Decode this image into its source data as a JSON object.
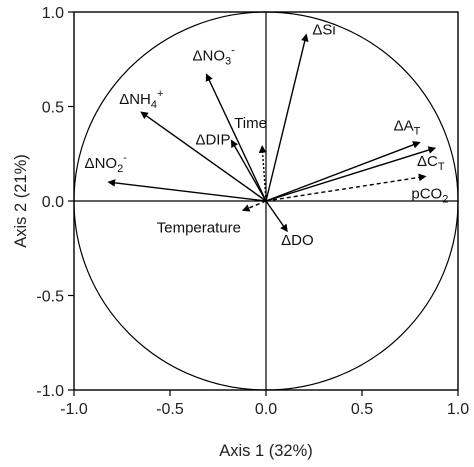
{
  "chart_data": {
    "type": "scatter",
    "subtype": "pca-biplot",
    "title": "",
    "xlabel": "Axis 1 (32%)",
    "ylabel": "Axis 2 (21%)",
    "xlim": [
      -1.0,
      1.0
    ],
    "ylim": [
      -1.0,
      1.0
    ],
    "xticks": [
      "-1.0",
      "-0.5",
      "0.0",
      "0.5",
      "1.0"
    ],
    "yticks": [
      "1.0",
      "0.5",
      "0.0",
      "-0.5",
      "-1.0"
    ],
    "grid": false,
    "correlation_circle": true,
    "vectors": [
      {
        "name": "ΔSi",
        "x": 0.21,
        "y": 0.88,
        "style": "solid",
        "label": {
          "base": "ΔSi",
          "sub": "",
          "sup": ""
        }
      },
      {
        "name": "ΔNO3-",
        "x": -0.31,
        "y": 0.67,
        "style": "solid",
        "label": {
          "base": "ΔNO",
          "sub": "3",
          "sup": "-"
        }
      },
      {
        "name": "ΔNH4+",
        "x": -0.65,
        "y": 0.47,
        "style": "solid",
        "label": {
          "base": "ΔNH",
          "sub": "4",
          "sup": "+"
        }
      },
      {
        "name": "ΔDIP",
        "x": -0.18,
        "y": 0.32,
        "style": "solid",
        "label": {
          "base": "ΔDIP",
          "sub": "",
          "sup": ""
        }
      },
      {
        "name": "Time",
        "x": -0.02,
        "y": 0.29,
        "style": "dotted",
        "label": {
          "base": "Time",
          "sub": "",
          "sup": ""
        }
      },
      {
        "name": "ΔNO2-",
        "x": -0.82,
        "y": 0.1,
        "style": "solid",
        "label": {
          "base": "ΔNO",
          "sub": "2",
          "sup": "-"
        }
      },
      {
        "name": "ΔAT",
        "x": 0.8,
        "y": 0.31,
        "style": "solid",
        "label": {
          "base": "ΔA",
          "sub": "T",
          "sup": ""
        }
      },
      {
        "name": "ΔCT",
        "x": 0.88,
        "y": 0.28,
        "style": "solid",
        "label": {
          "base": "ΔC",
          "sub": "T",
          "sup": ""
        }
      },
      {
        "name": "pCO2",
        "x": 0.83,
        "y": 0.13,
        "style": "dashed",
        "label": {
          "base": "pCO",
          "sub": "2",
          "sup": ""
        }
      },
      {
        "name": "Temperature",
        "x": -0.12,
        "y": -0.05,
        "style": "dashed",
        "label": {
          "base": "Temperature",
          "sub": "",
          "sup": ""
        }
      },
      {
        "name": "ΔDO",
        "x": 0.11,
        "y": -0.16,
        "style": "solid",
        "label": {
          "base": "ΔDO",
          "sub": "",
          "sup": ""
        }
      }
    ]
  }
}
